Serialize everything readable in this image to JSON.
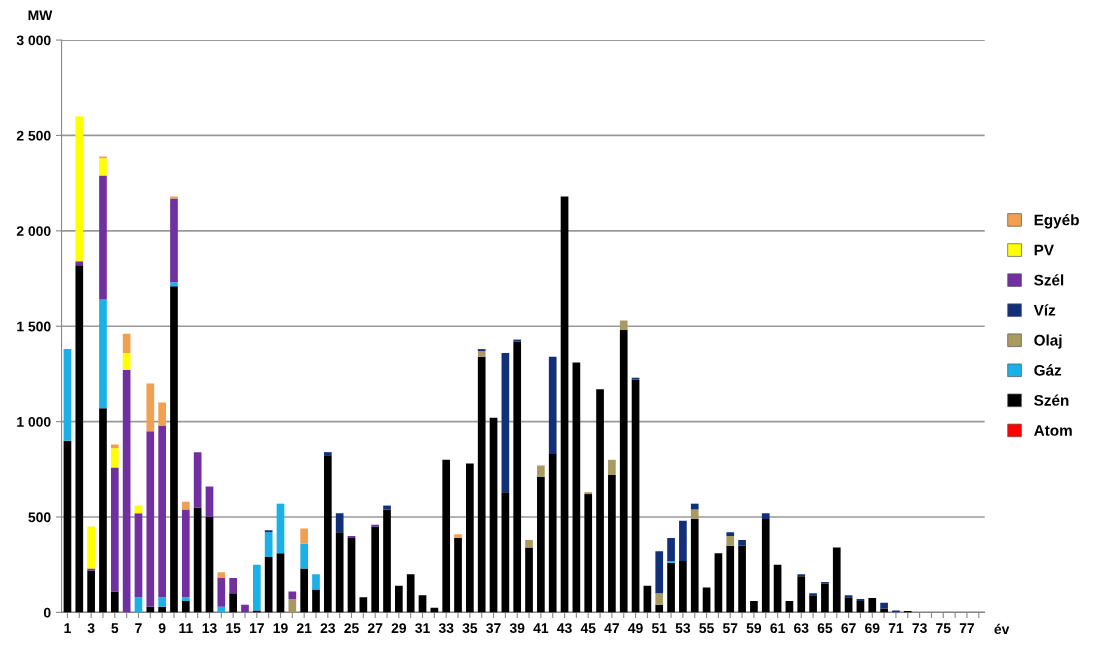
{
  "chart_data": {
    "type": "bar",
    "stacked": true,
    "ylabel": "MW",
    "xlabel": "év",
    "categories": [
      "1",
      null,
      "3",
      null,
      "5",
      null,
      "7",
      null,
      "9",
      null,
      "11",
      null,
      "13",
      null,
      "15",
      null,
      "17",
      null,
      "19",
      null,
      "21",
      null,
      "23",
      null,
      "25",
      null,
      "27",
      null,
      "29",
      null,
      "31",
      null,
      "33",
      null,
      "35",
      null,
      "37",
      null,
      "39",
      null,
      "41",
      null,
      "43",
      null,
      "45",
      null,
      "47",
      null,
      "49",
      null,
      "51",
      null,
      "53",
      null,
      "55",
      null,
      "57",
      null,
      "59",
      null,
      "61",
      null,
      "63",
      null,
      "65",
      null,
      "67",
      null,
      "69",
      null,
      "71",
      null,
      "73",
      null,
      "75",
      null,
      "77",
      null
    ],
    "ylim": [
      0,
      3000
    ],
    "yticks": [
      0,
      500,
      {
        "value": 1000,
        "label": "1 000"
      },
      {
        "value": 1500,
        "label": "1 500"
      },
      {
        "value": 2000,
        "label": "2 000"
      },
      {
        "value": 2500,
        "label": "2 500"
      },
      {
        "value": 3000,
        "label": "3 000"
      }
    ],
    "grid": "y",
    "legend": "right",
    "series": [
      {
        "name": "Atom",
        "color": "#ff0000",
        "values": [
          0,
          0,
          0,
          0,
          0,
          0,
          0,
          0,
          0,
          0,
          0,
          0,
          0,
          0,
          0,
          0,
          0,
          0,
          0,
          0,
          0,
          0,
          0,
          0,
          0,
          0,
          0,
          0,
          0,
          0,
          0,
          0,
          0,
          0,
          0,
          0,
          0,
          0,
          0,
          0,
          0,
          0,
          0,
          0,
          0,
          0,
          0,
          0,
          0,
          0,
          0,
          0,
          0,
          0,
          0,
          0,
          0,
          0,
          0,
          0,
          0,
          0,
          0,
          0,
          0,
          0,
          0,
          0,
          0,
          0,
          0,
          0,
          0,
          0,
          0,
          0,
          0,
          0
        ]
      },
      {
        "name": "Szén",
        "color": "#000000",
        "values": [
          900,
          1820,
          220,
          1070,
          110,
          0,
          0,
          30,
          30,
          1710,
          60,
          550,
          500,
          0,
          100,
          0,
          10,
          290,
          310,
          0,
          230,
          120,
          820,
          420,
          390,
          80,
          450,
          540,
          140,
          200,
          90,
          25,
          800,
          390,
          780,
          1340,
          1020,
          630,
          1420,
          340,
          710,
          830,
          2180,
          1310,
          620,
          1170,
          720,
          1480,
          1220,
          140,
          40,
          260,
          270,
          490,
          130,
          310,
          350,
          350,
          60,
          490,
          250,
          60,
          190,
          90,
          150,
          340,
          80,
          60,
          75,
          20,
          0,
          8,
          0,
          0,
          0,
          0,
          0,
          0
        ]
      },
      {
        "name": "Gáz",
        "color": "#1ab0e8",
        "values": [
          480,
          0,
          0,
          570,
          0,
          0,
          80,
          0,
          50,
          20,
          20,
          0,
          0,
          30,
          0,
          0,
          240,
          130,
          260,
          0,
          130,
          80,
          0,
          0,
          0,
          0,
          0,
          0,
          0,
          0,
          0,
          0,
          0,
          0,
          0,
          0,
          0,
          0,
          0,
          0,
          0,
          0,
          0,
          0,
          0,
          0,
          0,
          0,
          0,
          0,
          0,
          10,
          0,
          0,
          0,
          0,
          0,
          0,
          0,
          0,
          0,
          0,
          0,
          0,
          0,
          0,
          0,
          0,
          0,
          0,
          0,
          0,
          0,
          0,
          0,
          0,
          0,
          0
        ]
      },
      {
        "name": "Olaj",
        "color": "#a89a60",
        "values": [
          0,
          0,
          0,
          0,
          0,
          0,
          0,
          0,
          0,
          0,
          0,
          0,
          0,
          0,
          0,
          0,
          0,
          0,
          0,
          70,
          0,
          0,
          0,
          0,
          0,
          0,
          0,
          0,
          0,
          0,
          0,
          0,
          0,
          0,
          0,
          30,
          0,
          0,
          0,
          40,
          60,
          0,
          0,
          0,
          10,
          0,
          80,
          50,
          0,
          0,
          60,
          0,
          0,
          50,
          0,
          0,
          50,
          0,
          0,
          0,
          0,
          0,
          0,
          0,
          0,
          0,
          0,
          0,
          0,
          0,
          0,
          0,
          0,
          0,
          0,
          0,
          0,
          0
        ]
      },
      {
        "name": "Víz",
        "color": "#12307a",
        "values": [
          0,
          0,
          0,
          0,
          0,
          0,
          0,
          0,
          0,
          0,
          0,
          0,
          0,
          0,
          0,
          0,
          0,
          10,
          0,
          0,
          0,
          0,
          20,
          100,
          0,
          0,
          0,
          20,
          0,
          0,
          0,
          0,
          0,
          0,
          0,
          10,
          0,
          730,
          10,
          0,
          0,
          510,
          0,
          0,
          0,
          0,
          0,
          0,
          10,
          0,
          220,
          120,
          210,
          30,
          0,
          0,
          20,
          30,
          0,
          30,
          0,
          0,
          10,
          10,
          10,
          0,
          10,
          10,
          0,
          30,
          10,
          0,
          0,
          0,
          0,
          0,
          0,
          0
        ]
      },
      {
        "name": "Szél",
        "color": "#7030a0",
        "values": [
          0,
          20,
          10,
          650,
          650,
          1270,
          440,
          920,
          900,
          440,
          460,
          290,
          160,
          150,
          80,
          40,
          0,
          0,
          0,
          40,
          0,
          0,
          0,
          0,
          10,
          0,
          10,
          0,
          0,
          0,
          0,
          0,
          0,
          0,
          0,
          0,
          0,
          0,
          0,
          0,
          0,
          0,
          0,
          0,
          0,
          0,
          0,
          0,
          0,
          0,
          0,
          0,
          0,
          0,
          0,
          0,
          0,
          0,
          0,
          0,
          0,
          0,
          0,
          0,
          0,
          0,
          0,
          0,
          0,
          0,
          0,
          0,
          0,
          0,
          0,
          0,
          0,
          0
        ]
      },
      {
        "name": "PV",
        "color": "#ffff00",
        "values": [
          0,
          760,
          220,
          90,
          100,
          90,
          40,
          0,
          0,
          0,
          0,
          0,
          0,
          0,
          0,
          0,
          0,
          0,
          0,
          0,
          0,
          0,
          0,
          0,
          0,
          0,
          0,
          0,
          0,
          0,
          0,
          0,
          0,
          0,
          0,
          0,
          0,
          0,
          0,
          0,
          0,
          0,
          0,
          0,
          0,
          0,
          0,
          0,
          0,
          0,
          0,
          0,
          0,
          0,
          0,
          0,
          0,
          0,
          0,
          0,
          0,
          0,
          0,
          0,
          0,
          0,
          0,
          0,
          0,
          0,
          0,
          0,
          0,
          0,
          0,
          0,
          0,
          0
        ]
      },
      {
        "name": "Egyéb",
        "color": "#f0a050",
        "values": [
          0,
          0,
          0,
          10,
          20,
          100,
          0,
          250,
          120,
          10,
          40,
          0,
          0,
          30,
          0,
          0,
          0,
          0,
          0,
          0,
          80,
          0,
          0,
          0,
          0,
          0,
          0,
          0,
          0,
          0,
          0,
          0,
          0,
          20,
          0,
          0,
          0,
          0,
          0,
          0,
          0,
          0,
          0,
          0,
          0,
          0,
          0,
          0,
          0,
          0,
          0,
          0,
          0,
          0,
          0,
          0,
          0,
          0,
          0,
          0,
          0,
          0,
          0,
          0,
          0,
          0,
          0,
          0,
          0,
          0,
          0,
          0,
          0,
          0,
          0,
          0,
          0,
          0
        ]
      }
    ]
  }
}
